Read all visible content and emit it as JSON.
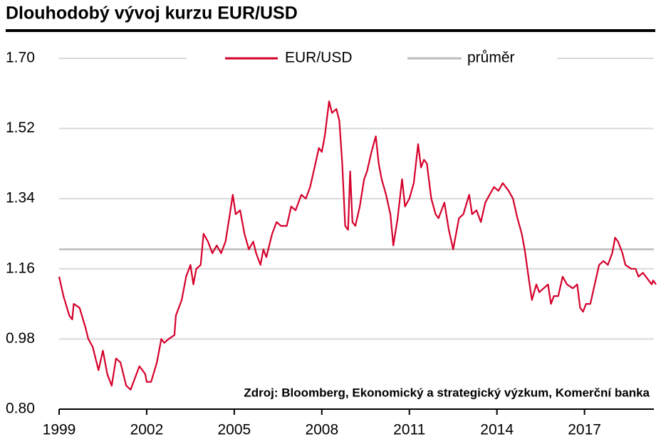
{
  "chart_data": {
    "type": "line",
    "title": "Dlouhodobý vývoj kurzu EUR/USD",
    "source": "Zdroj: Bloomberg, Ekonomický a strategický výzkum, Komerční banka",
    "x": [
      1999.0,
      1999.15,
      1999.35,
      1999.45,
      1999.5,
      1999.7,
      1999.9,
      2000.0,
      2000.15,
      2000.35,
      2000.5,
      2000.65,
      2000.8,
      2000.95,
      2001.1,
      2001.3,
      2001.45,
      2001.6,
      2001.75,
      2001.95,
      2002.0,
      2002.15,
      2002.35,
      2002.5,
      2002.6,
      2002.75,
      2002.95,
      2003.0,
      2003.2,
      2003.35,
      2003.5,
      2003.6,
      2003.7,
      2003.85,
      2003.95,
      2004.1,
      2004.25,
      2004.4,
      2004.55,
      2004.7,
      2004.85,
      2004.95,
      2005.05,
      2005.2,
      2005.35,
      2005.5,
      2005.65,
      2005.75,
      2005.9,
      2006.0,
      2006.1,
      2006.3,
      2006.45,
      2006.6,
      2006.8,
      2006.95,
      2007.1,
      2007.3,
      2007.45,
      2007.6,
      2007.75,
      2007.9,
      2008.0,
      2008.1,
      2008.2,
      2008.25,
      2008.35,
      2008.5,
      2008.6,
      2008.7,
      2008.8,
      2008.9,
      2008.97,
      2009.05,
      2009.15,
      2009.3,
      2009.45,
      2009.55,
      2009.7,
      2009.85,
      2009.95,
      2010.05,
      2010.2,
      2010.35,
      2010.45,
      2010.6,
      2010.75,
      2010.85,
      2011.0,
      2011.15,
      2011.3,
      2011.4,
      2011.5,
      2011.6,
      2011.75,
      2011.9,
      2012.0,
      2012.2,
      2012.35,
      2012.5,
      2012.7,
      2012.85,
      2013.05,
      2013.15,
      2013.3,
      2013.45,
      2013.6,
      2013.75,
      2013.9,
      2014.05,
      2014.2,
      2014.3,
      2014.4,
      2014.55,
      2014.7,
      2014.85,
      2014.95,
      2015.1,
      2015.2,
      2015.35,
      2015.45,
      2015.6,
      2015.75,
      2015.85,
      2015.95,
      2016.1,
      2016.25,
      2016.4,
      2016.6,
      2016.75,
      2016.85,
      2016.95,
      2017.05,
      2017.2,
      2017.35,
      2017.5,
      2017.65,
      2017.8,
      2017.95,
      2018.05,
      2018.15,
      2018.3,
      2018.4,
      2018.6,
      2018.75,
      2018.85,
      2019.0,
      2019.2,
      2019.3,
      2019.35,
      2019.45
    ],
    "series": [
      {
        "name": "EUR/USD",
        "color": "#d5002b",
        "values": [
          1.14,
          1.09,
          1.04,
          1.03,
          1.07,
          1.06,
          1.01,
          0.98,
          0.96,
          0.9,
          0.95,
          0.89,
          0.86,
          0.93,
          0.92,
          0.86,
          0.85,
          0.88,
          0.91,
          0.89,
          0.87,
          0.87,
          0.92,
          0.98,
          0.97,
          0.98,
          0.99,
          1.04,
          1.08,
          1.14,
          1.17,
          1.12,
          1.16,
          1.17,
          1.25,
          1.23,
          1.2,
          1.22,
          1.2,
          1.23,
          1.3,
          1.35,
          1.3,
          1.31,
          1.25,
          1.21,
          1.23,
          1.2,
          1.17,
          1.21,
          1.19,
          1.25,
          1.28,
          1.27,
          1.27,
          1.32,
          1.31,
          1.35,
          1.34,
          1.37,
          1.42,
          1.47,
          1.46,
          1.5,
          1.56,
          1.59,
          1.56,
          1.57,
          1.54,
          1.43,
          1.27,
          1.26,
          1.41,
          1.28,
          1.27,
          1.32,
          1.39,
          1.41,
          1.46,
          1.5,
          1.43,
          1.39,
          1.35,
          1.3,
          1.22,
          1.29,
          1.39,
          1.32,
          1.34,
          1.38,
          1.48,
          1.42,
          1.44,
          1.43,
          1.34,
          1.3,
          1.29,
          1.33,
          1.26,
          1.21,
          1.29,
          1.3,
          1.35,
          1.3,
          1.31,
          1.28,
          1.33,
          1.35,
          1.37,
          1.36,
          1.38,
          1.37,
          1.36,
          1.34,
          1.29,
          1.25,
          1.21,
          1.13,
          1.08,
          1.12,
          1.1,
          1.11,
          1.12,
          1.07,
          1.09,
          1.09,
          1.14,
          1.12,
          1.11,
          1.12,
          1.06,
          1.05,
          1.07,
          1.07,
          1.12,
          1.17,
          1.18,
          1.17,
          1.2,
          1.24,
          1.23,
          1.2,
          1.17,
          1.16,
          1.16,
          1.14,
          1.15,
          1.13,
          1.12,
          1.13,
          1.12
        ]
      }
    ],
    "average": {
      "name": "průměr",
      "color": "#bcbcbc",
      "value": 1.21
    },
    "xlim": [
      1999,
      2019.45
    ],
    "xticks": [
      1999,
      2002,
      2005,
      2008,
      2011,
      2014,
      2017
    ],
    "ylim": [
      0.8,
      1.7
    ],
    "yticks": [
      {
        "value": 0.8,
        "label": "0.80"
      },
      0.98,
      1.16,
      1.34,
      1.52,
      {
        "value": 1.7,
        "label": "1.70"
      }
    ],
    "grid": true
  }
}
